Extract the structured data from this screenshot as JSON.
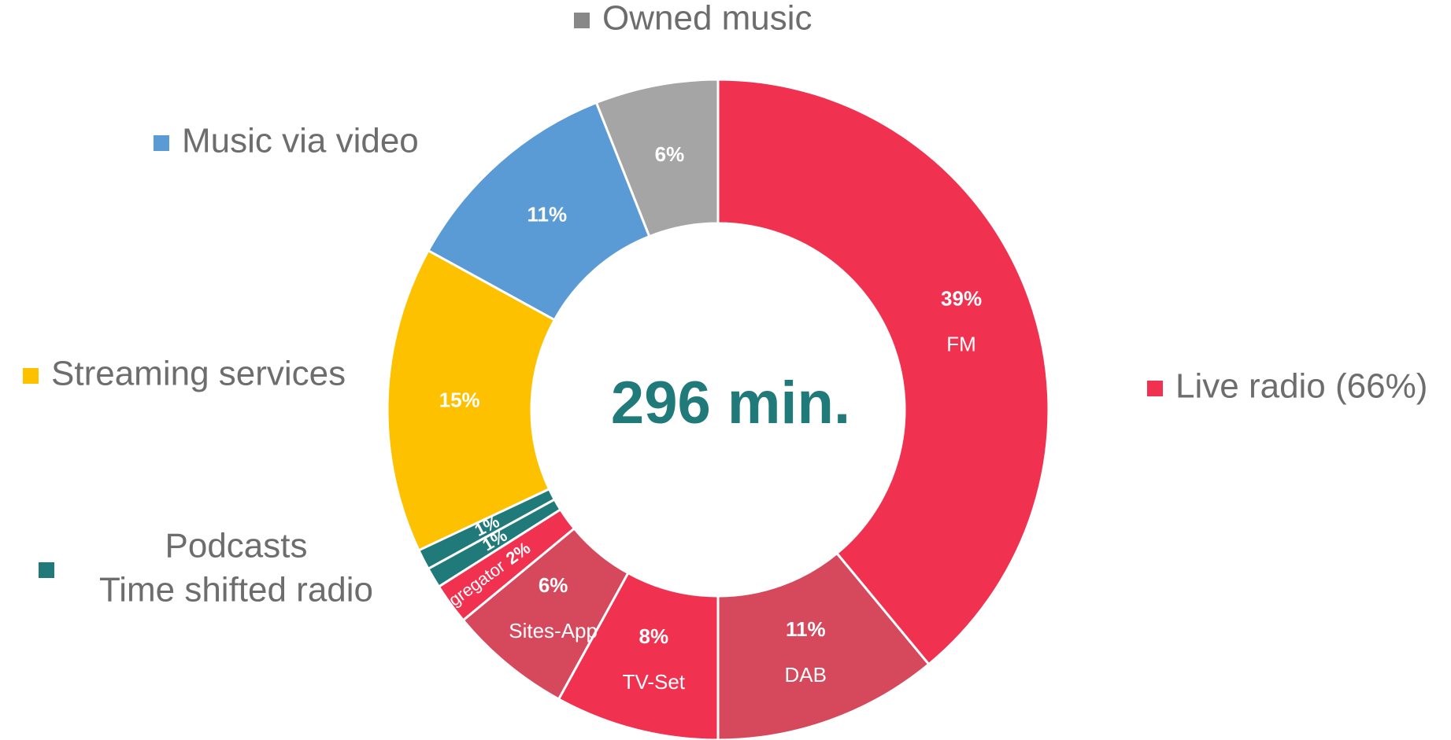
{
  "chart_data": {
    "type": "donut",
    "center_text": "296 min.",
    "categories": [
      "FM",
      "DAB",
      "TV-Set",
      "Sites-App",
      "Agregator",
      null,
      null,
      null,
      null,
      null
    ],
    "values": [
      39,
      11,
      8,
      6,
      2,
      1,
      1,
      15,
      11,
      6
    ],
    "value_labels": [
      "39%",
      "11%",
      "8%",
      "6%",
      "2%",
      "1%",
      "1%",
      "15%",
      "11%",
      "6%"
    ],
    "colors": [
      "#f0314f",
      "#d6485c",
      "#f0314f",
      "#d6485c",
      "#f0314f",
      "#217a7a",
      "#217a7a",
      "#fdc100",
      "#5b9bd5",
      "#a5a5a5"
    ],
    "legend": [
      {
        "name": [
          "Live radio (66%)"
        ],
        "color": "#f0314f"
      },
      {
        "name": [
          "Owned music"
        ],
        "color": "#888888"
      },
      {
        "name": [
          "Music via video"
        ],
        "color": "#5b9bd5"
      },
      {
        "name": [
          "Streaming services"
        ],
        "color": "#fdc100"
      },
      {
        "name": [
          "Podcasts",
          "Time shifted radio"
        ],
        "color": "#217a7a"
      }
    ]
  }
}
